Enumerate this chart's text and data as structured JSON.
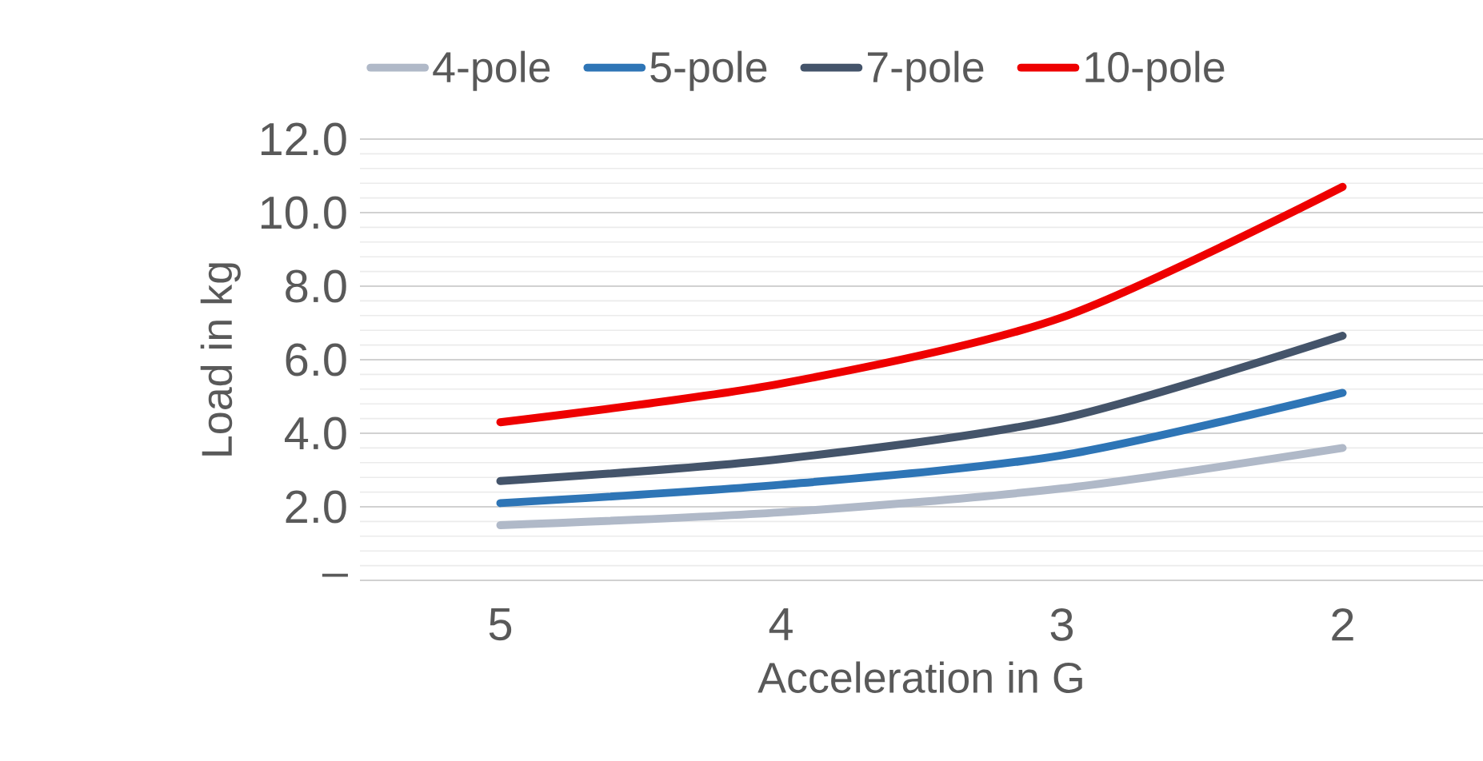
{
  "chart_data": {
    "type": "line",
    "xlabel": "Acceleration in G",
    "ylabel": "Load in kg",
    "categories": [
      "5",
      "4",
      "3",
      "2"
    ],
    "series": [
      {
        "name": "4-pole",
        "color": "#b0b9c8",
        "values": [
          1.5,
          1.85,
          2.5,
          3.6
        ]
      },
      {
        "name": "5-pole",
        "color": "#2e75b6",
        "values": [
          2.1,
          2.6,
          3.4,
          5.1
        ]
      },
      {
        "name": "7-pole",
        "color": "#44546a",
        "values": [
          2.7,
          3.3,
          4.4,
          6.65
        ]
      },
      {
        "name": "10-pole",
        "color": "#ee0000",
        "values": [
          4.3,
          5.35,
          7.15,
          10.7
        ]
      }
    ],
    "ylim": [
      0,
      12
    ],
    "yticks": [
      {
        "value": 0,
        "label": "–"
      },
      {
        "value": 2,
        "label": "2.0"
      },
      {
        "value": 4,
        "label": "4.0"
      },
      {
        "value": 6,
        "label": "6.0"
      },
      {
        "value": 8,
        "label": "8.0"
      },
      {
        "value": 10,
        "label": "10.0"
      },
      {
        "value": 12,
        "label": "12.0"
      }
    ],
    "grid": "y",
    "legend": "top",
    "marker": "none",
    "line_style": "solid"
  }
}
